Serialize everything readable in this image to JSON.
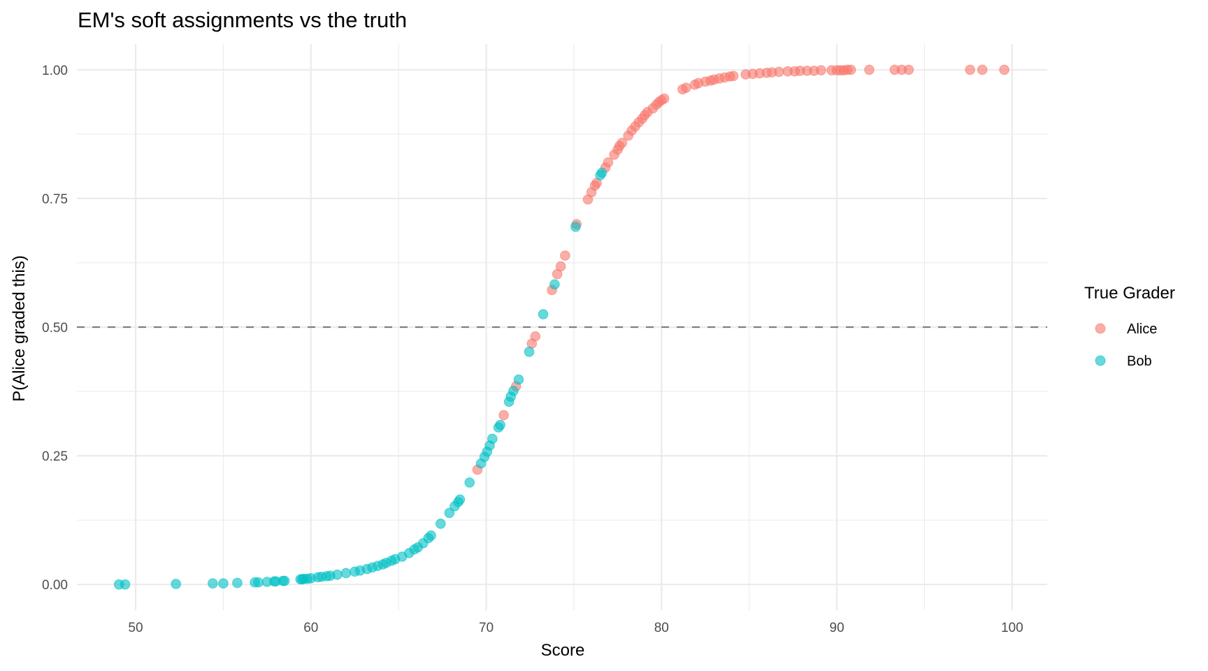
{
  "chart_data": {
    "type": "scatter",
    "title": "EM's soft assignments vs the truth",
    "xlabel": "Score",
    "ylabel": "P(Alice graded this)",
    "xlim": [
      46.65,
      102.0
    ],
    "ylim": [
      -0.05,
      1.05
    ],
    "x_ticks": [
      50,
      60,
      70,
      80,
      90,
      100
    ],
    "y_ticks": [
      0.0,
      0.25,
      0.5,
      0.75,
      1.0
    ],
    "x_tick_labels": [
      "50",
      "60",
      "70",
      "80",
      "90",
      "100"
    ],
    "y_tick_labels": [
      "0.00",
      "0.25",
      "0.50",
      "0.75",
      "1.00"
    ],
    "grid": true,
    "reference_line": {
      "y": 0.5,
      "style": "dashed",
      "color": "#808080"
    },
    "legend": {
      "title": "True Grader",
      "position": "right",
      "entries": [
        {
          "label": "Alice",
          "color": "#F8766D"
        },
        {
          "label": "Bob",
          "color": "#00BFC4"
        }
      ]
    },
    "series": [
      {
        "name": "Alice",
        "color": "#F8766D",
        "points": [
          [
            69.5,
            0.223
          ],
          [
            71.0,
            0.329
          ],
          [
            71.7,
            0.385
          ],
          [
            72.6,
            0.468
          ],
          [
            72.8,
            0.482
          ],
          [
            73.75,
            0.572
          ],
          [
            74.05,
            0.603
          ],
          [
            74.25,
            0.618
          ],
          [
            74.5,
            0.639
          ],
          [
            75.15,
            0.7
          ],
          [
            75.8,
            0.748
          ],
          [
            76.0,
            0.762
          ],
          [
            76.2,
            0.775
          ],
          [
            76.3,
            0.78
          ],
          [
            76.8,
            0.81
          ],
          [
            76.95,
            0.82
          ],
          [
            77.3,
            0.835
          ],
          [
            77.5,
            0.845
          ],
          [
            77.6,
            0.852
          ],
          [
            77.75,
            0.858
          ],
          [
            78.1,
            0.872
          ],
          [
            78.3,
            0.882
          ],
          [
            78.5,
            0.89
          ],
          [
            78.7,
            0.898
          ],
          [
            78.9,
            0.905
          ],
          [
            79.05,
            0.912
          ],
          [
            79.2,
            0.918
          ],
          [
            79.5,
            0.925
          ],
          [
            79.7,
            0.932
          ],
          [
            79.85,
            0.937
          ],
          [
            80.0,
            0.941
          ],
          [
            80.15,
            0.944
          ],
          [
            81.2,
            0.962
          ],
          [
            81.4,
            0.965
          ],
          [
            81.9,
            0.971
          ],
          [
            82.1,
            0.974
          ],
          [
            82.5,
            0.977
          ],
          [
            82.8,
            0.979
          ],
          [
            83.0,
            0.981
          ],
          [
            83.3,
            0.983
          ],
          [
            83.6,
            0.985
          ],
          [
            83.9,
            0.987
          ],
          [
            84.1,
            0.988
          ],
          [
            84.8,
            0.991
          ],
          [
            85.2,
            0.992
          ],
          [
            85.6,
            0.993
          ],
          [
            86.0,
            0.994
          ],
          [
            86.3,
            0.995
          ],
          [
            86.7,
            0.996
          ],
          [
            87.2,
            0.997
          ],
          [
            87.6,
            0.997
          ],
          [
            87.9,
            0.998
          ],
          [
            88.3,
            0.998
          ],
          [
            88.7,
            0.998
          ],
          [
            89.1,
            0.999
          ],
          [
            89.7,
            0.999
          ],
          [
            90.0,
            0.999
          ],
          [
            90.2,
            0.999
          ],
          [
            90.4,
            0.999
          ],
          [
            90.6,
            1.0
          ],
          [
            90.8,
            1.0
          ],
          [
            91.85,
            1.0
          ],
          [
            93.3,
            1.0
          ],
          [
            93.7,
            1.0
          ],
          [
            94.1,
            1.0
          ],
          [
            97.6,
            1.0
          ],
          [
            98.3,
            1.0
          ],
          [
            99.55,
            1.0
          ]
        ]
      },
      {
        "name": "Bob",
        "color": "#00BFC4",
        "points": [
          [
            49.05,
            0.0
          ],
          [
            49.4,
            0.0
          ],
          [
            52.3,
            0.001
          ],
          [
            54.4,
            0.002
          ],
          [
            55.0,
            0.002
          ],
          [
            55.8,
            0.003
          ],
          [
            56.8,
            0.004
          ],
          [
            57.0,
            0.004
          ],
          [
            57.5,
            0.005
          ],
          [
            57.9,
            0.006
          ],
          [
            58.0,
            0.006
          ],
          [
            58.4,
            0.007
          ],
          [
            58.5,
            0.007
          ],
          [
            59.4,
            0.01
          ],
          [
            59.5,
            0.01
          ],
          [
            59.6,
            0.011
          ],
          [
            59.8,
            0.011
          ],
          [
            60.0,
            0.012
          ],
          [
            60.4,
            0.014
          ],
          [
            60.6,
            0.015
          ],
          [
            60.9,
            0.016
          ],
          [
            61.1,
            0.017
          ],
          [
            61.5,
            0.019
          ],
          [
            62.0,
            0.022
          ],
          [
            62.5,
            0.025
          ],
          [
            62.8,
            0.027
          ],
          [
            63.2,
            0.03
          ],
          [
            63.5,
            0.033
          ],
          [
            63.8,
            0.036
          ],
          [
            64.1,
            0.039
          ],
          [
            64.3,
            0.042
          ],
          [
            64.6,
            0.046
          ],
          [
            64.8,
            0.049
          ],
          [
            65.2,
            0.054
          ],
          [
            65.6,
            0.061
          ],
          [
            65.9,
            0.068
          ],
          [
            66.1,
            0.072
          ],
          [
            66.4,
            0.08
          ],
          [
            66.7,
            0.09
          ],
          [
            66.85,
            0.095
          ],
          [
            67.4,
            0.118
          ],
          [
            67.9,
            0.139
          ],
          [
            68.2,
            0.152
          ],
          [
            68.4,
            0.16
          ],
          [
            68.5,
            0.165
          ],
          [
            69.05,
            0.198
          ],
          [
            69.7,
            0.235
          ],
          [
            69.9,
            0.248
          ],
          [
            70.05,
            0.258
          ],
          [
            70.2,
            0.27
          ],
          [
            70.35,
            0.283
          ],
          [
            70.7,
            0.305
          ],
          [
            70.8,
            0.31
          ],
          [
            71.3,
            0.355
          ],
          [
            71.4,
            0.365
          ],
          [
            71.55,
            0.376
          ],
          [
            71.85,
            0.398
          ],
          [
            72.45,
            0.452
          ],
          [
            73.25,
            0.525
          ],
          [
            73.9,
            0.583
          ],
          [
            75.1,
            0.695
          ],
          [
            76.5,
            0.795
          ],
          [
            76.6,
            0.8
          ]
        ]
      }
    ]
  }
}
